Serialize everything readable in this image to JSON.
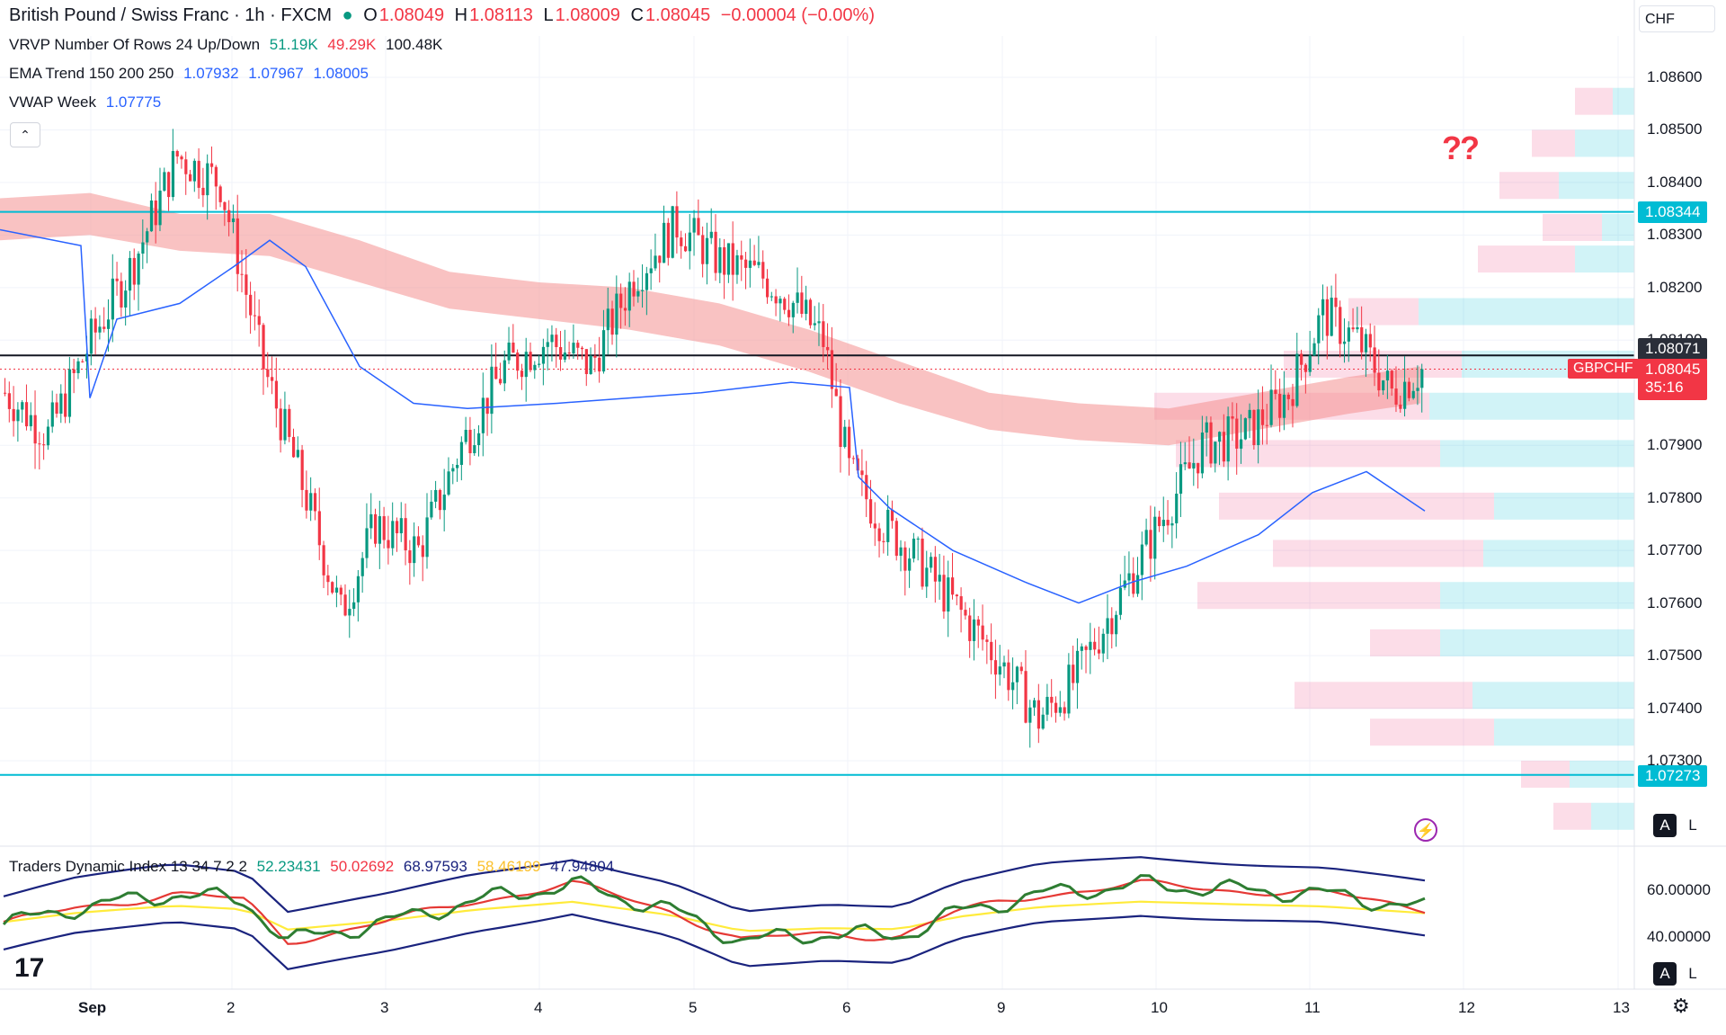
{
  "header": {
    "title": "British Pound / Swiss Franc · 1h · FXCM",
    "open_label": "O",
    "open": "1.08049",
    "high_label": "H",
    "high": "1.08113",
    "low_label": "L",
    "low": "1.08009",
    "close_label": "C",
    "close": "1.08045",
    "change": "−0.00004 (−0.00%)",
    "currency": "CHF"
  },
  "indicators": {
    "vrvp": {
      "label": "VRVP Number Of Rows 24 Up/Down",
      "v1": "51.19K",
      "v2": "49.29K",
      "v3": "100.48K"
    },
    "ema": {
      "label": "EMA Trend 150 200 250",
      "v1": "1.07932",
      "v2": "1.07967",
      "v3": "1.08005"
    },
    "vwap": {
      "label": "VWAP Week",
      "v1": "1.07775"
    },
    "tdi": {
      "label": "Traders Dynamic Index 13 34 7 2 2",
      "v1": "52.23431",
      "v2": "50.02692",
      "v3": "68.97593",
      "v4": "58.46199",
      "v5": "47.94804"
    }
  },
  "colors": {
    "up": "#089981",
    "down": "#f23645",
    "level": "#00bcd4",
    "vwap": "#2962ff",
    "ema_band": "#f4a6a6",
    "tdi_green": "#2e7d32",
    "tdi_red": "#e53935",
    "tdi_yellow": "#ffeb3b",
    "tdi_blue": "#1a237e"
  },
  "price_axis": {
    "ticks": [
      "1.08600",
      "1.08500",
      "1.08400",
      "1.08300",
      "1.08200",
      "1.08100",
      "1.07900",
      "1.07800",
      "1.07700",
      "1.07600",
      "1.07500",
      "1.07400",
      "1.07300"
    ],
    "level_high": "1.08344",
    "level_low": "1.07273",
    "crosshair": "1.08071",
    "last_price": "1.08045",
    "countdown": "35:16",
    "symbol": "GBPCHF"
  },
  "tdi_axis": {
    "ticks": [
      "60.00000",
      "40.00000"
    ]
  },
  "annotation": "??",
  "scale_buttons": {
    "auto": "A",
    "log": "L"
  },
  "time_axis": [
    "Sep",
    "2",
    "3",
    "4",
    "5",
    "6",
    "9",
    "10",
    "11",
    "12",
    "13"
  ],
  "chart_data": {
    "type": "candlestick",
    "symbol": "GBPCHF",
    "timeframe": "1h",
    "ylim": [
      1.0723,
      1.0865
    ],
    "horizontal_levels": [
      1.08344,
      1.07273,
      1.08071
    ],
    "last_price": 1.08045,
    "x_labels": [
      "Sep",
      "2",
      "3",
      "4",
      "5",
      "6",
      "9",
      "10",
      "11",
      "12",
      "13"
    ],
    "path_close": [
      [
        0,
        1.08
      ],
      [
        10,
        1.0792
      ],
      [
        20,
        1.081
      ],
      [
        30,
        1.0825
      ],
      [
        40,
        1.0845
      ],
      [
        50,
        1.084
      ],
      [
        60,
        1.0805
      ],
      [
        70,
        1.078
      ],
      [
        78,
        1.0758
      ],
      [
        86,
        1.0775
      ],
      [
        96,
        1.077
      ],
      [
        106,
        1.079
      ],
      [
        116,
        1.0805
      ],
      [
        126,
        1.081
      ],
      [
        136,
        1.0805
      ],
      [
        146,
        1.0822
      ],
      [
        156,
        1.0832
      ],
      [
        166,
        1.0825
      ],
      [
        176,
        1.0822
      ],
      [
        182,
        1.0818
      ],
      [
        190,
        1.081
      ],
      [
        196,
        1.0785
      ],
      [
        204,
        1.0775
      ],
      [
        212,
        1.0768
      ],
      [
        220,
        1.076
      ],
      [
        230,
        1.075
      ],
      [
        240,
        1.0738
      ],
      [
        248,
        1.0745
      ],
      [
        258,
        1.076
      ],
      [
        268,
        1.0775
      ],
      [
        278,
        1.079
      ],
      [
        288,
        1.0792
      ],
      [
        298,
        1.08
      ],
      [
        306,
        1.0815
      ],
      [
        314,
        1.081
      ],
      [
        322,
        1.08
      ],
      [
        330,
        1.0805
      ]
    ],
    "tdi_range": [
      20,
      80
    ],
    "tdi_latest": {
      "rsi_price": 52.23,
      "signal": 50.03,
      "upper_band": 68.98,
      "middle": 58.46,
      "lower_band": 47.95
    }
  }
}
